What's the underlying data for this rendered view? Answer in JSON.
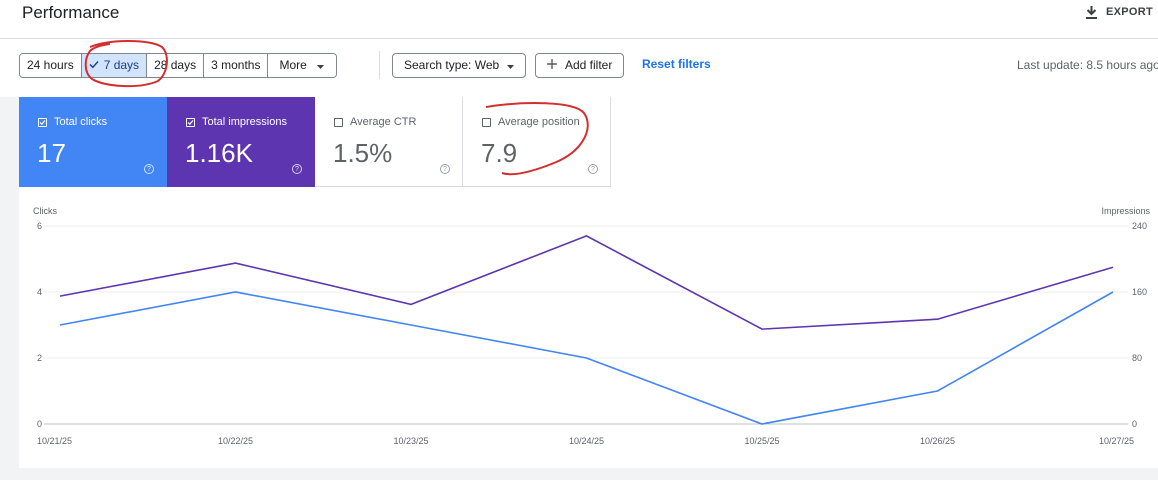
{
  "header": {
    "title": "Performance",
    "export_label": "EXPORT"
  },
  "toolbar": {
    "date_ranges": [
      {
        "label": "24 hours",
        "selected": false
      },
      {
        "label": "7 days",
        "selected": true
      },
      {
        "label": "28 days",
        "selected": false
      },
      {
        "label": "3 months",
        "selected": false
      }
    ],
    "more_label": "More",
    "search_type_label": "Search type: Web",
    "add_filter_label": "Add filter",
    "reset_filters_label": "Reset filters",
    "last_update": "Last update: 8.5 hours ago"
  },
  "metrics": [
    {
      "label": "Total clicks",
      "value": "17",
      "checked": true,
      "color": "#4285f4"
    },
    {
      "label": "Total impressions",
      "value": "1.16K",
      "checked": true,
      "color": "#5e35b1"
    },
    {
      "label": "Average CTR",
      "value": "1.5%",
      "checked": false,
      "color": "#ffffff"
    },
    {
      "label": "Average position",
      "value": "7.9",
      "checked": false,
      "color": "#ffffff"
    }
  ],
  "chart_data": {
    "type": "line",
    "x": [
      "10/21/25",
      "10/22/25",
      "10/23/25",
      "10/24/25",
      "10/25/25",
      "10/26/25",
      "10/27/25"
    ],
    "series": [
      {
        "name": "Clicks",
        "axis": "left",
        "color": "#4285f4",
        "values": [
          3,
          4,
          3,
          2,
          0,
          1,
          4
        ]
      },
      {
        "name": "Impressions",
        "axis": "right",
        "color": "#5e35b1",
        "values": [
          155,
          195,
          145,
          228,
          115,
          127,
          190
        ]
      }
    ],
    "ylabel_left": "Clicks",
    "ylabel_right": "Impressions",
    "yticks_left": [
      0,
      2,
      4,
      6
    ],
    "yticks_right": [
      0,
      80,
      160,
      240
    ],
    "ylim_left": [
      0,
      6
    ],
    "ylim_right": [
      0,
      240
    ],
    "grid": true,
    "legend": "none"
  }
}
